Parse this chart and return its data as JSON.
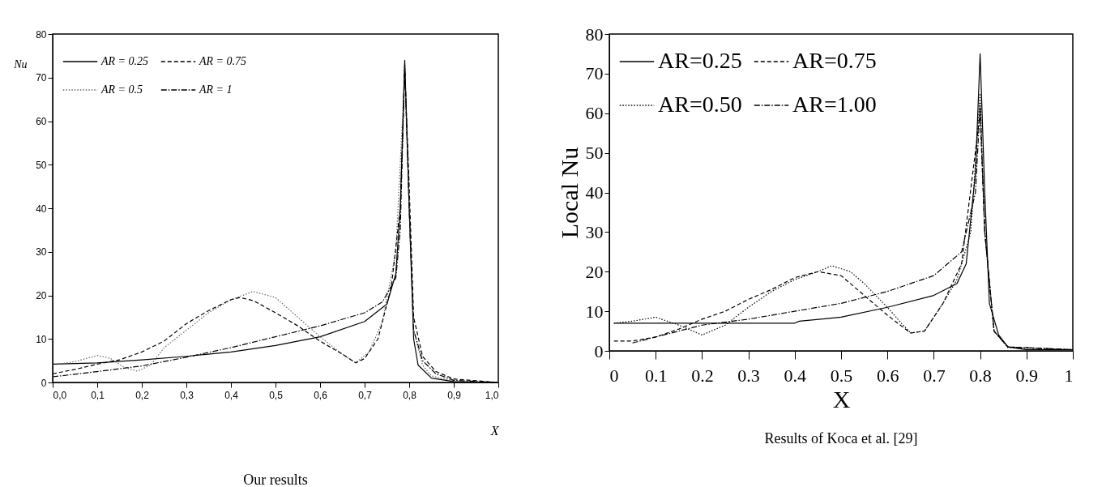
{
  "chart_data": [
    {
      "type": "line",
      "xlabel": "X",
      "ylabel": "Nu",
      "annotations": [
        "Our results"
      ],
      "legend": "top left",
      "grid": false,
      "xlim": [
        0,
        1
      ],
      "xticks": [
        {
          "value": 0,
          "label": "0,0"
        },
        {
          "value": 0.1,
          "label": "0,1"
        },
        {
          "value": 0.2,
          "label": "0,2"
        },
        {
          "value": 0.3,
          "label": "0,3"
        },
        {
          "value": 0.4,
          "label": "0,4"
        },
        {
          "value": 0.5,
          "label": "0,5"
        },
        {
          "value": 0.6,
          "label": "0,6"
        },
        {
          "value": 0.7,
          "label": "0,7"
        },
        {
          "value": 0.8,
          "label": "0,8"
        },
        {
          "value": 0.9,
          "label": "0,9"
        },
        {
          "value": 1,
          "label": "1,0"
        }
      ],
      "ylim": [
        0,
        80
      ],
      "yticks": [
        0,
        10,
        20,
        30,
        40,
        50,
        60,
        70,
        80
      ],
      "series": [
        {
          "name": "AR = 0.25",
          "color": "#000000",
          "line_style": "solid",
          "x": [
            0,
            0.1,
            0.2,
            0.3,
            0.4,
            0.5,
            0.6,
            0.7,
            0.75,
            0.77,
            0.78,
            0.79,
            0.8,
            0.81,
            0.82,
            0.85,
            0.9,
            1
          ],
          "values": [
            4.2,
            4.5,
            5.2,
            6,
            7,
            8.5,
            10.5,
            14,
            18,
            25,
            40,
            74,
            40,
            10,
            4,
            1,
            0.2,
            0
          ]
        },
        {
          "name": "AR = 0.5",
          "color": "#666666",
          "line_style": "dotted",
          "x": [
            0,
            0.05,
            0.1,
            0.13,
            0.16,
            0.19,
            0.22,
            0.25,
            0.3,
            0.35,
            0.4,
            0.45,
            0.5,
            0.55,
            0.6,
            0.65,
            0.68,
            0.71,
            0.74,
            0.77,
            0.79,
            0.8,
            0.81,
            0.83,
            0.85,
            0.9,
            1
          ],
          "values": [
            4,
            4.8,
            6.2,
            5.5,
            3.5,
            2.6,
            4,
            8,
            12,
            16,
            19,
            20.9,
            19.5,
            15,
            10.5,
            6.5,
            4.5,
            7,
            14,
            30,
            71,
            40,
            12,
            4,
            1.5,
            0.3,
            0
          ]
        },
        {
          "name": "AR = 0.75",
          "color": "#000000",
          "line_style": "dashed",
          "x": [
            0,
            0.05,
            0.1,
            0.15,
            0.2,
            0.25,
            0.3,
            0.35,
            0.4,
            0.42,
            0.45,
            0.5,
            0.55,
            0.6,
            0.65,
            0.68,
            0.7,
            0.73,
            0.76,
            0.78,
            0.79,
            0.8,
            0.81,
            0.83,
            0.86,
            0.9,
            1
          ],
          "values": [
            2,
            3,
            4.2,
            5.2,
            7,
            9.5,
            13.5,
            16.5,
            19,
            19.5,
            18.8,
            16,
            13,
            9.5,
            6.5,
            4.5,
            5.5,
            10,
            22,
            40,
            72,
            45,
            15,
            6,
            2.5,
            0.8,
            0
          ]
        },
        {
          "name": "AR = 1",
          "color": "#000000",
          "line_style": "dashdot",
          "x": [
            0,
            0.1,
            0.2,
            0.3,
            0.4,
            0.5,
            0.6,
            0.7,
            0.74,
            0.77,
            0.78,
            0.79,
            0.8,
            0.81,
            0.83,
            0.86,
            0.9,
            1
          ],
          "values": [
            1.3,
            2.5,
            3.8,
            5.8,
            8,
            10.5,
            13,
            16,
            18.5,
            24,
            35,
            73,
            40,
            12,
            5,
            2,
            0.5,
            0
          ]
        }
      ]
    },
    {
      "type": "line",
      "xlabel": "X",
      "ylabel": "Local Nu",
      "annotations": [
        "Results of Koca et al. [29]"
      ],
      "legend": "top left",
      "grid": false,
      "xlim": [
        0,
        1
      ],
      "xticks": [
        0,
        0.1,
        0.2,
        0.3,
        0.4,
        0.5,
        0.6,
        0.7,
        0.8,
        0.9,
        1
      ],
      "ylim": [
        0,
        80
      ],
      "yticks": [
        0,
        10,
        20,
        30,
        40,
        50,
        60,
        70,
        80
      ],
      "series": [
        {
          "name": "AR=0.25",
          "color": "#000000",
          "line_style": "solid",
          "x": [
            0.01,
            0.2,
            0.4,
            0.41,
            0.5,
            0.6,
            0.7,
            0.75,
            0.77,
            0.79,
            0.8,
            0.81,
            0.82,
            0.84,
            0.86,
            0.9,
            1
          ],
          "values": [
            7,
            7,
            7,
            7.5,
            8.5,
            11,
            14,
            17,
            22,
            45,
            75,
            40,
            12,
            4,
            1,
            0.3,
            0.3
          ]
        },
        {
          "name": "AR=0.50",
          "color": "#000000",
          "line_style": "dotted",
          "x": [
            0.01,
            0.05,
            0.1,
            0.15,
            0.2,
            0.25,
            0.3,
            0.35,
            0.4,
            0.45,
            0.48,
            0.52,
            0.55,
            0.6,
            0.63,
            0.65,
            0.68,
            0.72,
            0.75,
            0.78,
            0.8,
            0.81,
            0.83,
            0.86,
            1
          ],
          "values": [
            7,
            7.5,
            8.5,
            6.5,
            4,
            6.5,
            11,
            15,
            18,
            20,
            21.5,
            20,
            17,
            11,
            7,
            4.5,
            5,
            12,
            18,
            30,
            65,
            30,
            5,
            0.8,
            0.3
          ]
        },
        {
          "name": "AR=0.75",
          "color": "#000000",
          "line_style": "dashed",
          "x": [
            0.01,
            0.05,
            0.1,
            0.15,
            0.2,
            0.25,
            0.3,
            0.35,
            0.4,
            0.45,
            0.5,
            0.55,
            0.6,
            0.65,
            0.68,
            0.72,
            0.76,
            0.8,
            0.81,
            0.83,
            0.86,
            1
          ],
          "values": [
            2.5,
            2.5,
            3.5,
            5.5,
            8,
            10,
            13,
            15.5,
            18.5,
            20,
            19,
            14,
            9,
            4.5,
            5,
            12,
            22,
            60,
            30,
            5,
            1,
            0.3
          ]
        },
        {
          "name": "AR=1.00",
          "color": "#000000",
          "line_style": "dashdot",
          "x": [
            0.05,
            0.1,
            0.15,
            0.2,
            0.3,
            0.4,
            0.5,
            0.6,
            0.7,
            0.76,
            0.79,
            0.8,
            0.81,
            0.83,
            0.86,
            1
          ],
          "values": [
            2,
            3.5,
            5,
            6.5,
            8,
            10,
            12,
            15,
            19,
            25,
            40,
            62,
            30,
            5,
            1,
            0.3
          ]
        }
      ]
    }
  ]
}
